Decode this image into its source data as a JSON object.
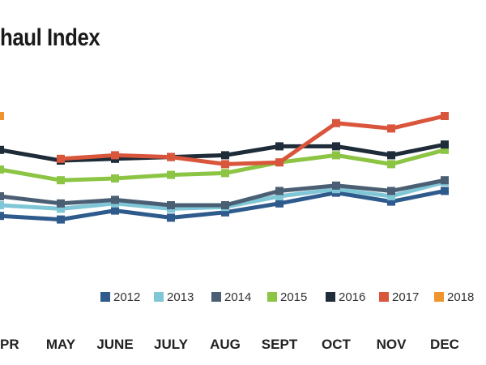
{
  "chart_data": {
    "type": "line",
    "title": "haul Index",
    "xlabel": "",
    "ylabel": "",
    "categories": [
      "PR",
      "MAY",
      "JUNE",
      "JULY",
      "AUG",
      "SEPT",
      "OCT",
      "NOV",
      "DEC"
    ],
    "ylim": [
      0,
      100
    ],
    "grid": false,
    "legend_position": "bottom-right",
    "series": [
      {
        "name": "2012",
        "color": "#2e5a8c",
        "values": [
          29,
          27,
          32,
          28,
          31,
          36,
          42,
          37,
          43
        ]
      },
      {
        "name": "2013",
        "color": "#7fc6d6",
        "values": [
          35,
          33,
          36,
          33,
          34,
          40,
          44,
          40,
          48
        ]
      },
      {
        "name": "2014",
        "color": "#4a5f73",
        "values": [
          40,
          36,
          38,
          35,
          35,
          43,
          46,
          43,
          49
        ]
      },
      {
        "name": "2015",
        "color": "#8cc444",
        "values": [
          55,
          49,
          50,
          52,
          53,
          59,
          63,
          58,
          66
        ]
      },
      {
        "name": "2016",
        "color": "#1e2b38",
        "values": [
          66,
          60,
          61,
          62,
          63,
          68,
          68,
          63,
          69
        ]
      },
      {
        "name": "2017",
        "color": "#d9553b",
        "values": [
          null,
          61,
          63,
          62,
          58,
          59,
          81,
          78,
          85
        ]
      },
      {
        "name": "2018",
        "color": "#f0952e",
        "values": [
          85,
          null,
          null,
          null,
          null,
          null,
          null,
          null,
          null
        ]
      }
    ]
  }
}
